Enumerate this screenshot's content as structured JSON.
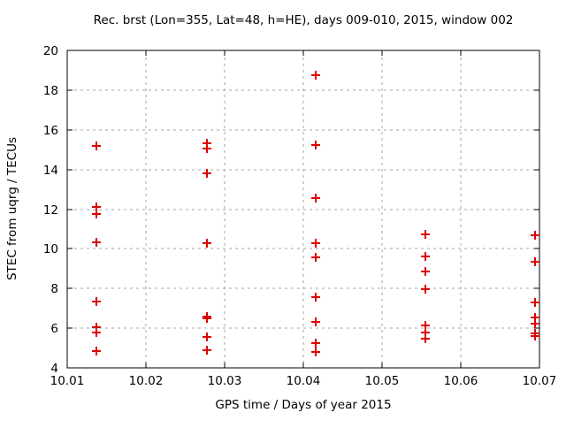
{
  "window": {
    "background_color": "#ffffff"
  },
  "chart_data": {
    "type": "scatter",
    "title": "Rec. brst (Lon=355, Lat=48, h=HE), days 009-010, 2015, window 002",
    "xlabel": "GPS time / Days of year 2015",
    "ylabel": "STEC from uqrg / TECUs",
    "xlim": [
      10.01,
      10.07
    ],
    "ylim": [
      4,
      20
    ],
    "xticks": [
      10.01,
      10.02,
      10.03,
      10.04,
      10.05,
      10.06,
      10.07
    ],
    "xtick_labels": [
      "10.01",
      "10.02",
      "10.03",
      "10.04",
      "10.05",
      "10.06",
      "10.07"
    ],
    "yticks": [
      4,
      6,
      8,
      10,
      12,
      14,
      16,
      18,
      20
    ],
    "ytick_labels": [
      "4",
      "6",
      "8",
      "10",
      "12",
      "14",
      "16",
      "18",
      "20"
    ],
    "grid": true,
    "legend": "none",
    "marker": {
      "shape": "plus",
      "color": "#dd0000",
      "size": 10,
      "stroke_width": 2
    },
    "grid_color": "#a6a6a6",
    "axis_color": "#000000",
    "series": [
      {
        "name": "STEC",
        "clusters": [
          {
            "x": 10.0137,
            "values": [
              15.2,
              12.1,
              11.75,
              10.35,
              7.35,
              6.05,
              5.8,
              4.85
            ]
          },
          {
            "x": 10.0277,
            "values": [
              15.3,
              15.05,
              13.8,
              10.3,
              6.6,
              6.5,
              5.55,
              4.9
            ]
          },
          {
            "x": 10.0416,
            "values": [
              18.75,
              15.25,
              12.55,
              10.3,
              9.55,
              7.55,
              6.3,
              5.25,
              4.8
            ]
          },
          {
            "x": 10.0555,
            "values": [
              10.75,
              9.6,
              8.85,
              7.95,
              6.15,
              5.8,
              5.45
            ]
          },
          {
            "x": 10.0694,
            "values": [
              10.7,
              9.35,
              7.3,
              6.55,
              6.25,
              5.75,
              5.6
            ]
          }
        ]
      }
    ]
  }
}
